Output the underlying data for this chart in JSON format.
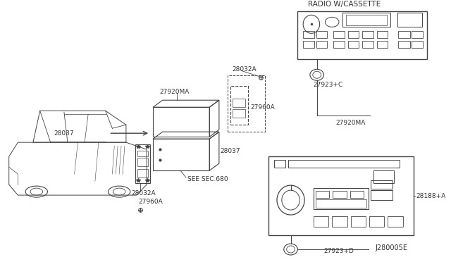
{
  "bg_color": "#ffffff",
  "lc": "#444444",
  "tc": "#333333",
  "labels": {
    "radio_cassette": "RADIO W/CASSETTE",
    "see_sec": "SEE SEC.680",
    "p27920MA_1": "27920MA",
    "p27920MA_2": "27920MA",
    "p28037_1": "28037",
    "p28037_2": "28037",
    "p28032A_1": "28032A",
    "p28032A_2": "28032A",
    "p27960A_1": "27960A",
    "p27960A_2": "27960A",
    "p27923C": "27923+C",
    "p27923D": "27923+D",
    "p28188A": "28188+A",
    "diagram_id": "J280005E"
  }
}
